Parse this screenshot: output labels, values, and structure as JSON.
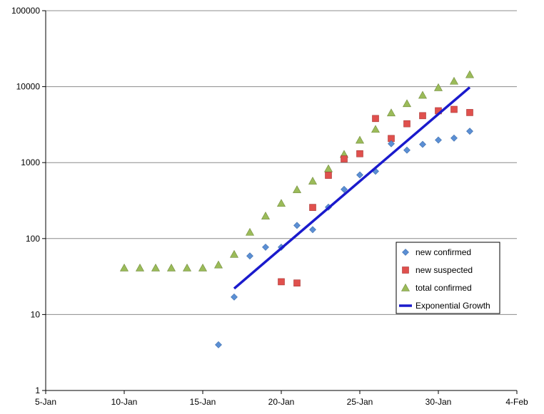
{
  "chart_data": {
    "type": "scatter",
    "title": "",
    "xlabel": "",
    "ylabel": "",
    "x_axis": {
      "min": "5-Jan",
      "max": "4-Feb",
      "ticks": [
        "5-Jan",
        "10-Jan",
        "15-Jan",
        "20-Jan",
        "25-Jan",
        "30-Jan",
        "4-Feb"
      ]
    },
    "y_axis": {
      "scale": "log",
      "min": 1,
      "max": 100000,
      "ticks": [
        "1",
        "10",
        "100",
        "1000",
        "10000",
        "100000"
      ]
    },
    "grid": "horizontal",
    "legend": "inside-lower-right",
    "series": [
      {
        "name": "new confirmed",
        "marker": "diamond",
        "color": "#5b8fd4",
        "points": [
          {
            "x": "16-Jan",
            "y": 4
          },
          {
            "x": "17-Jan",
            "y": 17
          },
          {
            "x": "18-Jan",
            "y": 59
          },
          {
            "x": "19-Jan",
            "y": 77
          },
          {
            "x": "20-Jan",
            "y": 77
          },
          {
            "x": "21-Jan",
            "y": 149
          },
          {
            "x": "22-Jan",
            "y": 131
          },
          {
            "x": "23-Jan",
            "y": 259
          },
          {
            "x": "24-Jan",
            "y": 444
          },
          {
            "x": "25-Jan",
            "y": 688
          },
          {
            "x": "26-Jan",
            "y": 769
          },
          {
            "x": "27-Jan",
            "y": 1771
          },
          {
            "x": "28-Jan",
            "y": 1459
          },
          {
            "x": "29-Jan",
            "y": 1737
          },
          {
            "x": "30-Jan",
            "y": 1982
          },
          {
            "x": "31-Jan",
            "y": 2102
          },
          {
            "x": "1-Feb",
            "y": 2590
          }
        ]
      },
      {
        "name": "new suspected",
        "marker": "square",
        "color": "#e0504d",
        "points": [
          {
            "x": "20-Jan",
            "y": 27
          },
          {
            "x": "21-Jan",
            "y": 26
          },
          {
            "x": "22-Jan",
            "y": 257
          },
          {
            "x": "23-Jan",
            "y": 680
          },
          {
            "x": "24-Jan",
            "y": 1118
          },
          {
            "x": "25-Jan",
            "y": 1309
          },
          {
            "x": "26-Jan",
            "y": 3806
          },
          {
            "x": "27-Jan",
            "y": 2077
          },
          {
            "x": "28-Jan",
            "y": 3248
          },
          {
            "x": "29-Jan",
            "y": 4148
          },
          {
            "x": "30-Jan",
            "y": 4812
          },
          {
            "x": "31-Jan",
            "y": 5019
          },
          {
            "x": "1-Feb",
            "y": 4562
          }
        ]
      },
      {
        "name": "total confirmed",
        "marker": "triangle",
        "color": "#9bbb59",
        "points": [
          {
            "x": "10-Jan",
            "y": 41
          },
          {
            "x": "11-Jan",
            "y": 41
          },
          {
            "x": "12-Jan",
            "y": 41
          },
          {
            "x": "13-Jan",
            "y": 41
          },
          {
            "x": "14-Jan",
            "y": 41
          },
          {
            "x": "15-Jan",
            "y": 41
          },
          {
            "x": "16-Jan",
            "y": 45
          },
          {
            "x": "17-Jan",
            "y": 62
          },
          {
            "x": "18-Jan",
            "y": 121
          },
          {
            "x": "19-Jan",
            "y": 198
          },
          {
            "x": "20-Jan",
            "y": 291
          },
          {
            "x": "21-Jan",
            "y": 440
          },
          {
            "x": "22-Jan",
            "y": 571
          },
          {
            "x": "23-Jan",
            "y": 830
          },
          {
            "x": "24-Jan",
            "y": 1287
          },
          {
            "x": "25-Jan",
            "y": 1975
          },
          {
            "x": "26-Jan",
            "y": 2744
          },
          {
            "x": "27-Jan",
            "y": 4515
          },
          {
            "x": "28-Jan",
            "y": 5974
          },
          {
            "x": "29-Jan",
            "y": 7711
          },
          {
            "x": "30-Jan",
            "y": 9692
          },
          {
            "x": "31-Jan",
            "y": 11791
          },
          {
            "x": "1-Feb",
            "y": 14380
          }
        ]
      },
      {
        "name": "Exponential Growth",
        "marker": "line",
        "color": "#1a1acc",
        "points": [
          {
            "x": "17-Jan",
            "y": 22
          },
          {
            "x": "1-Feb",
            "y": 9800
          }
        ]
      }
    ]
  }
}
